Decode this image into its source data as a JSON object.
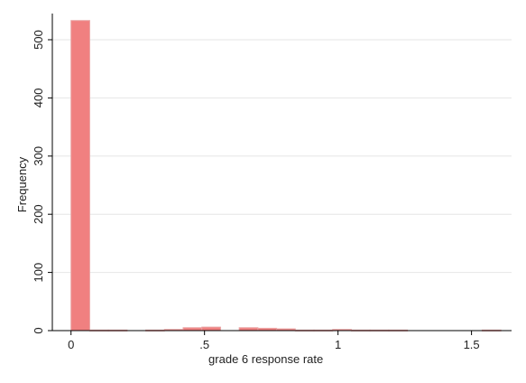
{
  "chart_data": {
    "type": "bar",
    "xlabel": "grade 6 response rate",
    "ylabel": "Frequency",
    "xlim": [
      -0.07,
      1.65
    ],
    "ylim": [
      0,
      545
    ],
    "x_ticks": [
      {
        "value": 0,
        "label": "0"
      },
      {
        "value": 0.5,
        "label": ".5"
      },
      {
        "value": 1,
        "label": "1"
      },
      {
        "value": 1.5,
        "label": "1.5"
      }
    ],
    "y_ticks": [
      {
        "value": 0,
        "label": "0"
      },
      {
        "value": 100,
        "label": "100"
      },
      {
        "value": 200,
        "label": "200"
      },
      {
        "value": 300,
        "label": "300"
      },
      {
        "value": 400,
        "label": "400"
      },
      {
        "value": 500,
        "label": "500"
      }
    ],
    "grid": true,
    "bar_color": "#f08080",
    "bar_edge_color": "#e9a3a3",
    "bins": [
      {
        "x0": 0.0,
        "x1": 0.07,
        "count": 533
      },
      {
        "x0": 0.07,
        "x1": 0.14,
        "count": 1
      },
      {
        "x0": 0.14,
        "x1": 0.21,
        "count": 1
      },
      {
        "x0": 0.21,
        "x1": 0.28,
        "count": 0
      },
      {
        "x0": 0.28,
        "x1": 0.35,
        "count": 1
      },
      {
        "x0": 0.35,
        "x1": 0.42,
        "count": 2
      },
      {
        "x0": 0.42,
        "x1": 0.49,
        "count": 5
      },
      {
        "x0": 0.49,
        "x1": 0.56,
        "count": 6
      },
      {
        "x0": 0.56,
        "x1": 0.63,
        "count": 0
      },
      {
        "x0": 0.63,
        "x1": 0.7,
        "count": 5
      },
      {
        "x0": 0.7,
        "x1": 0.77,
        "count": 4
      },
      {
        "x0": 0.77,
        "x1": 0.84,
        "count": 3
      },
      {
        "x0": 0.84,
        "x1": 0.91,
        "count": 1
      },
      {
        "x0": 0.91,
        "x1": 0.98,
        "count": 1
      },
      {
        "x0": 0.98,
        "x1": 1.05,
        "count": 2
      },
      {
        "x0": 1.05,
        "x1": 1.12,
        "count": 1
      },
      {
        "x0": 1.12,
        "x1": 1.19,
        "count": 1
      },
      {
        "x0": 1.19,
        "x1": 1.26,
        "count": 1
      },
      {
        "x0": 1.26,
        "x1": 1.33,
        "count": 0
      },
      {
        "x0": 1.33,
        "x1": 1.4,
        "count": 0
      },
      {
        "x0": 1.4,
        "x1": 1.47,
        "count": 0
      },
      {
        "x0": 1.47,
        "x1": 1.54,
        "count": 0
      },
      {
        "x0": 1.54,
        "x1": 1.61,
        "count": 1
      }
    ]
  }
}
